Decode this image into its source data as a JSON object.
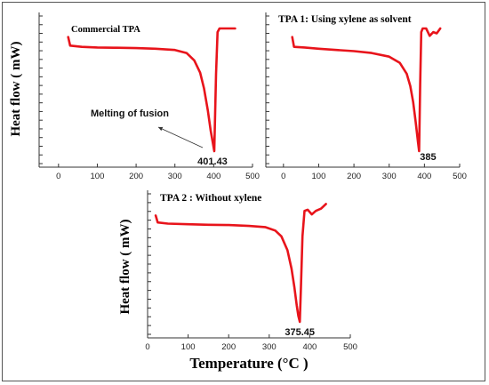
{
  "figure": {
    "ylabel": "Heat flow ( mW)",
    "xlabel": "Temperature (°C )"
  },
  "chart_data": [
    {
      "type": "line",
      "title": "Commercial TPA",
      "xlim": [
        -50,
        500
      ],
      "xticks": [
        0,
        100,
        200,
        300,
        400,
        500
      ],
      "ylabel": "Heat flow ( mW)",
      "xlabel": "",
      "annotations": [
        {
          "text": "Melting of fusion"
        },
        {
          "text": "401.43"
        }
      ],
      "series": [
        {
          "color": "#e8141b",
          "x": [
            25,
            30,
            60,
            100,
            150,
            200,
            250,
            300,
            330,
            350,
            365,
            375,
            385,
            392,
            397,
            401.43,
            403,
            406,
            410,
            415,
            430,
            445,
            455
          ],
          "y": [
            0.93,
            0.86,
            0.85,
            0.845,
            0.843,
            0.84,
            0.835,
            0.825,
            0.8,
            0.74,
            0.64,
            0.51,
            0.33,
            0.17,
            0.08,
            0.0,
            0.22,
            0.63,
            0.97,
            1.0,
            1.0,
            1.0,
            1.0
          ]
        }
      ]
    },
    {
      "type": "line",
      "title": "TPA 1: Using xylene as solvent",
      "xlim": [
        -50,
        500
      ],
      "xticks": [
        0,
        100,
        200,
        300,
        400,
        500
      ],
      "ylabel": "",
      "xlabel": "",
      "annotations": [
        {
          "text": "385"
        }
      ],
      "series": [
        {
          "color": "#e8141b",
          "x": [
            25,
            30,
            60,
            100,
            150,
            200,
            250,
            300,
            330,
            350,
            360,
            368,
            375,
            382,
            385,
            388,
            391,
            395,
            405,
            415,
            425,
            435,
            445
          ],
          "y": [
            0.93,
            0.85,
            0.845,
            0.835,
            0.825,
            0.815,
            0.8,
            0.77,
            0.72,
            0.63,
            0.53,
            0.4,
            0.24,
            0.07,
            0.0,
            0.55,
            0.97,
            1.0,
            1.0,
            0.94,
            0.97,
            0.96,
            1.0
          ]
        }
      ]
    },
    {
      "type": "line",
      "title": "TPA 2 : Without xylene",
      "xlim": [
        0,
        500
      ],
      "xticks": [
        0,
        100,
        200,
        300,
        400,
        500
      ],
      "ylabel": "Heat flow ( mW)",
      "xlabel": "Temperature (°C )",
      "annotations": [
        {
          "text": "375.45"
        }
      ],
      "series": [
        {
          "color": "#e8141b",
          "x": [
            20,
            25,
            50,
            100,
            150,
            200,
            250,
            290,
            315,
            330,
            345,
            355,
            362,
            368,
            372,
            375.45,
            378,
            382,
            387,
            395,
            405,
            415,
            428,
            440
          ],
          "y": [
            0.92,
            0.86,
            0.85,
            0.845,
            0.84,
            0.838,
            0.83,
            0.82,
            0.79,
            0.74,
            0.62,
            0.46,
            0.3,
            0.14,
            0.05,
            0.0,
            0.28,
            0.74,
            0.96,
            0.97,
            0.93,
            0.96,
            0.98,
            1.02
          ]
        }
      ]
    }
  ]
}
